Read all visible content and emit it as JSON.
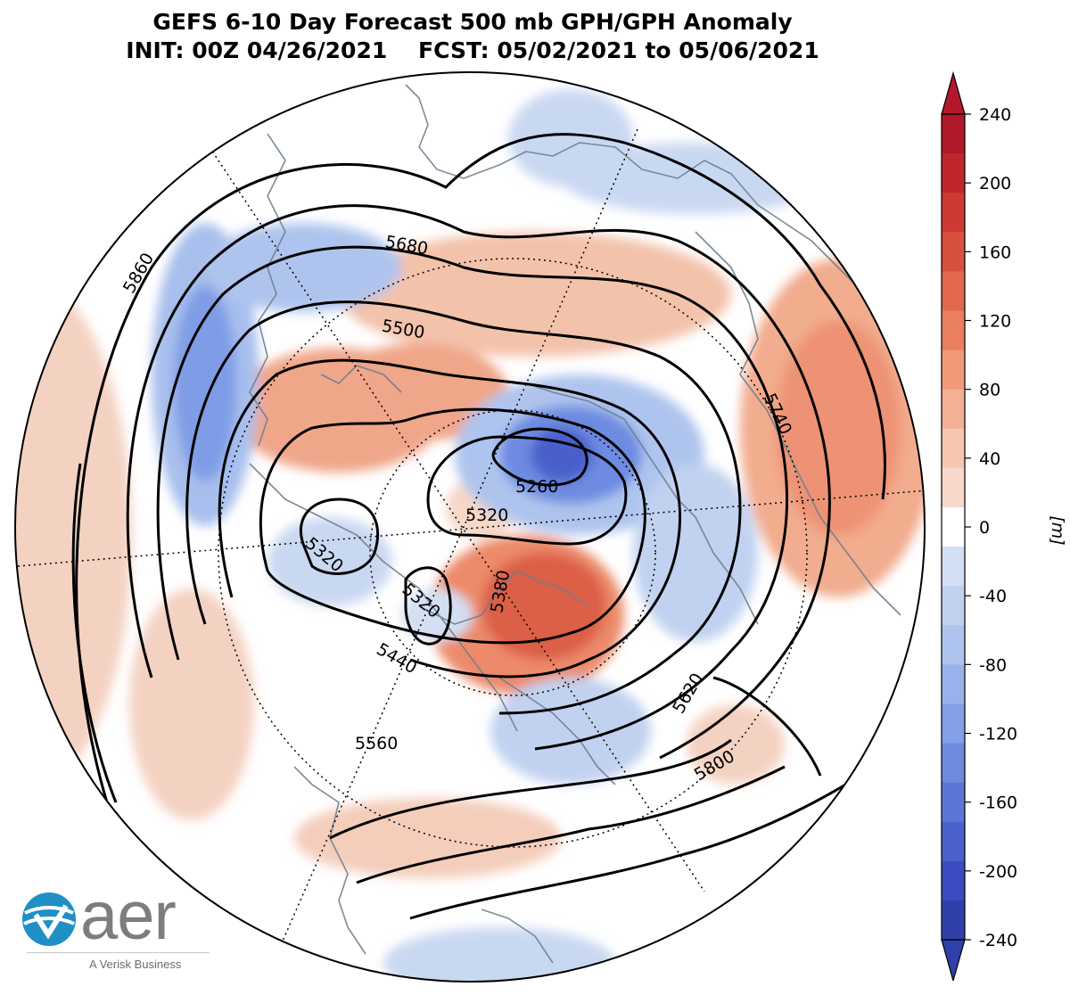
{
  "title": {
    "line1": "GEFS 6-10 Day Forecast 500 mb GPH/GPH Anomaly",
    "line2": "INIT: 00Z 04/26/2021    FCST: 05/02/2021 to 05/06/2021"
  },
  "colorbar": {
    "ticks": [
      "240",
      "200",
      "160",
      "120",
      "80",
      "40",
      "0",
      "-40",
      "-80",
      "-120",
      "-160",
      "-200",
      "-240"
    ],
    "unit": "[m]",
    "colors": [
      "#b2182b",
      "#c0272d",
      "#cd3a35",
      "#d8503f",
      "#e2684d",
      "#ea7f5f",
      "#f09a79",
      "#f4b095",
      "#f6c6b1",
      "#f6d9cb",
      "#ffffff",
      "#d3dff2",
      "#c1d2f0",
      "#aec4ee",
      "#98b3ec",
      "#839fe7",
      "#6f8be0",
      "#5c76d8",
      "#4a61cc",
      "#3b4cc0",
      "#3040a8"
    ]
  },
  "contour_labels": [
    {
      "id": "c5860",
      "text": "5860"
    },
    {
      "id": "c5680",
      "text": "5680"
    },
    {
      "id": "c5500",
      "text": "5500"
    },
    {
      "id": "c5260",
      "text": "5260"
    },
    {
      "id": "c5320a",
      "text": "5320"
    },
    {
      "id": "c5320b",
      "text": "5320"
    },
    {
      "id": "c5320c",
      "text": "5320"
    },
    {
      "id": "c5380",
      "text": "5380"
    },
    {
      "id": "c5440",
      "text": "5440"
    },
    {
      "id": "c5560",
      "text": "5560"
    },
    {
      "id": "c5620",
      "text": "5620"
    },
    {
      "id": "c5740",
      "text": "5740"
    },
    {
      "id": "c5800",
      "text": "5800"
    }
  ],
  "logo": {
    "word": "aer",
    "subtitle": "A Verisk Business"
  }
}
